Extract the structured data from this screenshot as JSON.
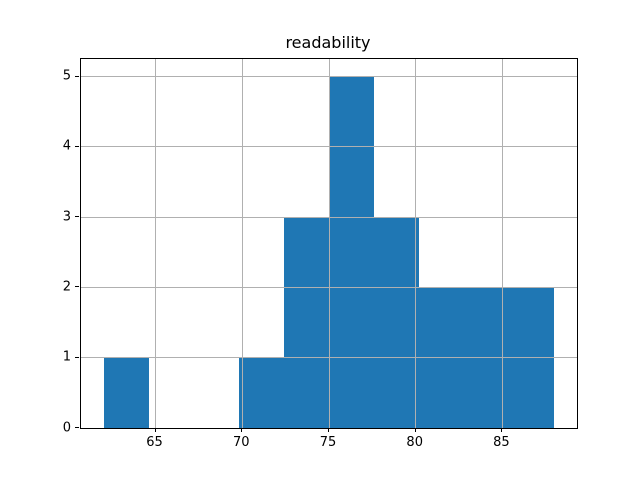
{
  "title": "readability",
  "colors": {
    "bar": "#1f77b4",
    "grid": "#b0b0b0",
    "spine": "#000000",
    "background": "#ffffff",
    "text": "#000000"
  },
  "chart_data": {
    "type": "bar",
    "subtype": "histogram",
    "title": "readability",
    "xlabel": "",
    "ylabel": "",
    "bin_edges": [
      62.0,
      64.6,
      67.2,
      69.8,
      72.4,
      75.0,
      77.6,
      80.2,
      82.8,
      85.4,
      88.0
    ],
    "counts": [
      1,
      0,
      0,
      1,
      3,
      5,
      3,
      2,
      2,
      2
    ],
    "xticks": [
      65,
      70,
      75,
      80,
      85
    ],
    "yticks": [
      0,
      1,
      2,
      3,
      4,
      5
    ],
    "xlim": [
      60.7,
      89.3
    ],
    "ylim": [
      0,
      5.25
    ],
    "grid": true,
    "grid_on_top_of_bars": true,
    "legend": null
  }
}
